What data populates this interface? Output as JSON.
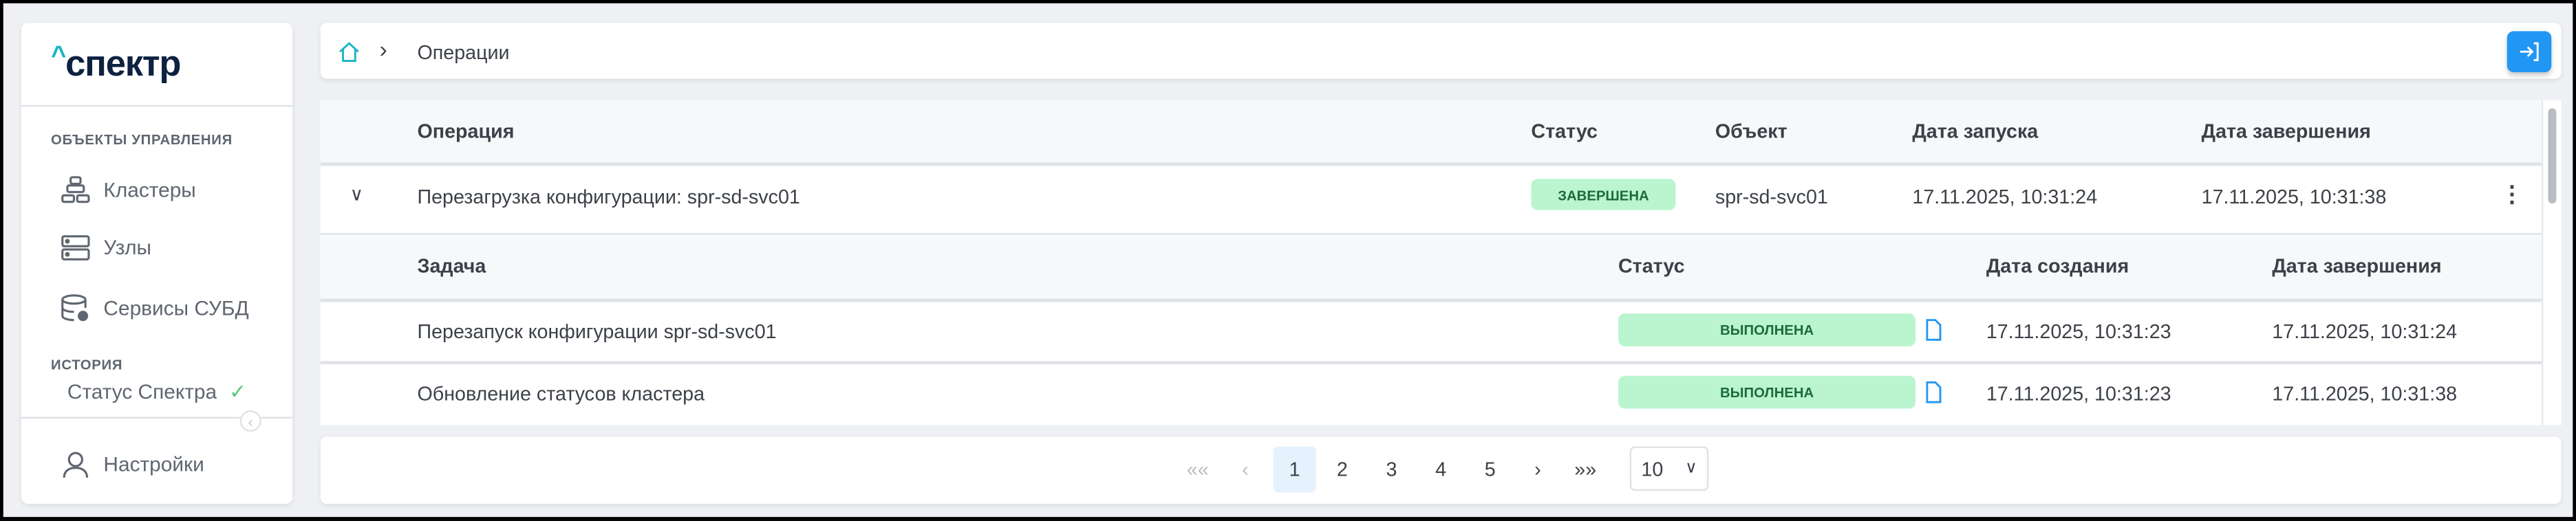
{
  "app": {
    "logo": "^спектр",
    "brand_color": "#0d2240",
    "accent_color": "#18b5c4"
  },
  "sidebar": {
    "section_objects": "ОБЪЕКТЫ УПРАВЛЕНИЯ",
    "items": [
      {
        "label": "Кластеры",
        "icon": "cluster-icon"
      },
      {
        "label": "Узлы",
        "icon": "server-icon"
      },
      {
        "label": "Сервисы СУБД",
        "icon": "database-gear-icon"
      }
    ],
    "section_history": "ИСТОРИЯ",
    "status_label": "Статус Спектра",
    "settings_label": "Настройки"
  },
  "header": {
    "breadcrumb": "Операции",
    "primary_color": "#2196f3"
  },
  "table": {
    "headers": [
      "Операция",
      "Статус",
      "Объект",
      "Дата запуска",
      "Дата завершения"
    ],
    "operation": {
      "name": "Перезагрузка конфигурации: spr-sd-svc01",
      "status": "ЗАВЕРШЕНА",
      "object": "spr-sd-svc01",
      "start": "17.11.2025, 10:31:24",
      "end": "17.11.2025, 10:31:38"
    },
    "sub_headers": [
      "Задача",
      "Статус",
      "Дата создания",
      "Дата завершения"
    ],
    "tasks": [
      {
        "name": "Перезапуск конфигурации spr-sd-svc01",
        "status": "ВЫПОЛНЕНА",
        "created": "17.11.2025, 10:31:23",
        "end": "17.11.2025, 10:31:24"
      },
      {
        "name": "Обновление статусов кластера",
        "status": "ВЫПОЛНЕНА",
        "created": "17.11.2025, 10:31:23",
        "end": "17.11.2025, 10:31:38"
      }
    ],
    "status_color": "#bbf5d0"
  },
  "pagination": {
    "first": "«",
    "prev": "‹",
    "pages": [
      "1",
      "2",
      "3",
      "4",
      "5"
    ],
    "current": "1",
    "next": "›",
    "last": "»",
    "page_size": "10"
  }
}
